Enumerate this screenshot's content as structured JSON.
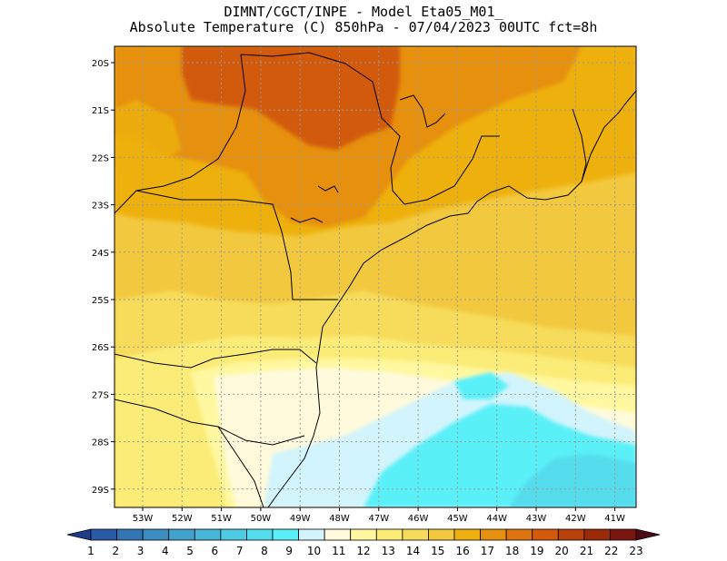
{
  "title": {
    "line1": "DIMNT/CGCT/INPE -  Model Eta05_M01_",
    "line2": "Absolute Temperature (C) 850hPa -  07/04/2023 00UTC fct=8h"
  },
  "axes": {
    "lat_labels": [
      "20S",
      "21S",
      "22S",
      "23S",
      "24S",
      "25S",
      "26S",
      "27S",
      "28S",
      "29S"
    ],
    "lon_labels": [
      "53W",
      "52W",
      "51W",
      "50W",
      "49W",
      "48W",
      "47W",
      "46W",
      "45W",
      "44W",
      "43W",
      "42W",
      "41W"
    ]
  },
  "colorbar": {
    "labels": [
      "1",
      "2",
      "3",
      "4",
      "5",
      "6",
      "7",
      "8",
      "9",
      "10",
      "11",
      "12",
      "13",
      "14",
      "15",
      "16",
      "17",
      "18",
      "19",
      "20",
      "21",
      "22",
      "23"
    ],
    "colors": [
      "#1e3c8c",
      "#2a5aa6",
      "#3476b4",
      "#3c8cc0",
      "#42a2cc",
      "#48b6d8",
      "#4ecae2",
      "#54dcec",
      "#5af0f8",
      "#d2f4fc",
      "#fffadc",
      "#fff8a0",
      "#fbec78",
      "#f6dc5a",
      "#f2c83e",
      "#eeb010",
      "#e69010",
      "#de7410",
      "#d25a0a",
      "#b8420a",
      "#9a2a0a",
      "#7a1610",
      "#4e0a14"
    ]
  },
  "map": {
    "grid_color": "#9a9a9a",
    "border_color": "#000000"
  }
}
